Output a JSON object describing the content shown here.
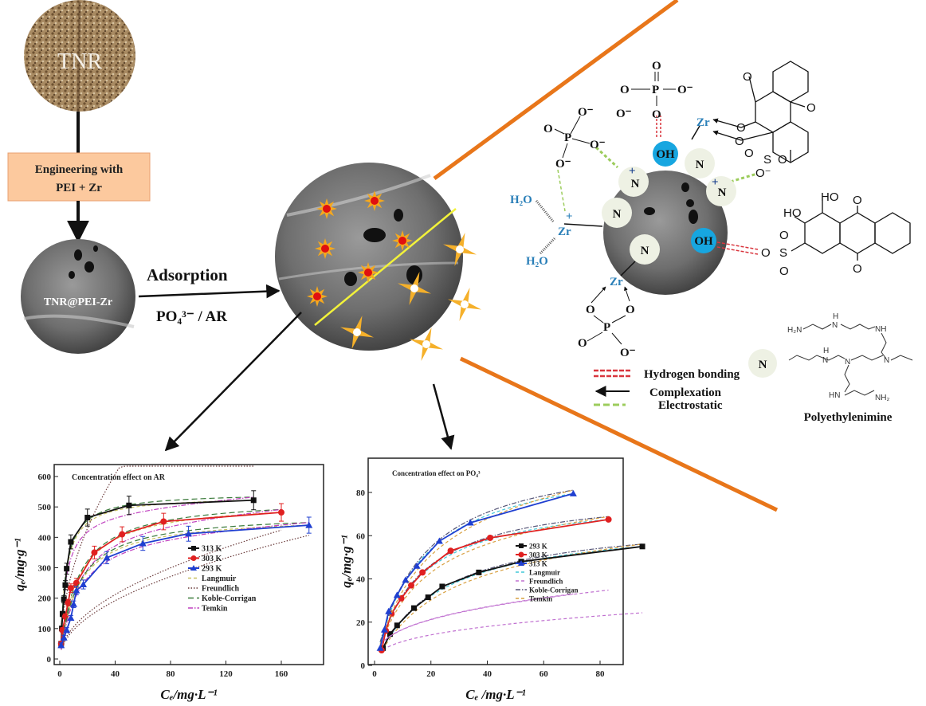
{
  "flow": {
    "raw_label": "TNR",
    "step_box": "Engineering with PEI + Zr",
    "step_box_line1": "Engineering  with",
    "step_box_line2": "PEI + Zr",
    "modified_label": "TNR@PEI-Zr",
    "process_label": "Adsorption",
    "targets_label": "PO₄³⁻ / AR"
  },
  "colors": {
    "accent_orange": "#e8761a",
    "box_fill": "#fcc99e",
    "oh_blue": "#17a6e0",
    "n_circle": "#eef1e4",
    "hbond": "#d9363e",
    "electrostatic": "#9ccc5c",
    "zr_blue": "#2a7fb8"
  },
  "mechanism": {
    "oh": "OH",
    "n": "N",
    "n_plus": "+",
    "zr": "Zr",
    "zr_plus": "+",
    "h2o": "H₂O",
    "o": "O",
    "o_minus": "O⁻",
    "p": "P",
    "s": "S",
    "ho": "HO",
    "legend": {
      "hbond": "Hydrogen  bonding",
      "complexation": "Complexation",
      "electrostatic": "Electrostatic"
    },
    "pei": {
      "name": "Polyethylenimine",
      "h2n": "H₂N",
      "nh": "NH",
      "h": "H",
      "n": "N",
      "hn": "HN",
      "nh2": "NH₂"
    }
  },
  "chart_data": [
    {
      "type": "scatter",
      "title": "Concentration effect on AR",
      "xlabel": "Cₑ/mg·L⁻¹",
      "ylabel": "qₑ/mg·g⁻¹",
      "xlim": [
        -5,
        185
      ],
      "ylim": [
        0,
        640
      ],
      "xticks": [
        0,
        40,
        80,
        120,
        160
      ],
      "yticks": [
        0,
        100,
        200,
        300,
        400,
        500,
        600
      ],
      "grid": false,
      "legend_placement": "center-right",
      "error_bars": true,
      "series": [
        {
          "name": "313 K",
          "color": "#111111",
          "marker": "square",
          "x": [
            1,
            1.5,
            2,
            3,
            4,
            5,
            8,
            20,
            50,
            140
          ],
          "y": [
            50,
            100,
            148,
            196,
            243,
            297,
            385,
            465,
            505,
            522
          ]
        },
        {
          "name": "303 K",
          "color": "#e02020",
          "marker": "circle",
          "x": [
            1,
            2,
            4,
            6,
            8,
            12,
            25,
            45,
            75,
            160
          ],
          "y": [
            50,
            95,
            140,
            185,
            233,
            250,
            350,
            410,
            452,
            482
          ]
        },
        {
          "name": "293 K",
          "color": "#1f3fd0",
          "marker": "triangle",
          "x": [
            1,
            3,
            5,
            8,
            10,
            12,
            17,
            34,
            60,
            93,
            180
          ],
          "y": [
            45,
            70,
            95,
            135,
            180,
            225,
            245,
            333,
            380,
            412,
            440
          ]
        }
      ],
      "models": [
        {
          "name": "Langmuir",
          "color": "#c8c060",
          "dash": "dash"
        },
        {
          "name": "Freundlich",
          "color": "#6a3a3a",
          "dash": "dot"
        },
        {
          "name": "Koble-Corrigan",
          "color": "#3a7a3a",
          "dash": "longdash"
        },
        {
          "name": "Temkin",
          "color": "#c040c0",
          "dash": "dashdot"
        }
      ]
    },
    {
      "type": "scatter",
      "title": "Concentration effect on PO₄³",
      "xlabel": "Cₑ /mg·L⁻¹",
      "ylabel": "qₑ/mg·g⁻¹",
      "xlim": [
        -1,
        97
      ],
      "ylim": [
        0,
        95
      ],
      "xticks": [
        0,
        20,
        40,
        60,
        80
      ],
      "yticks": [
        0,
        20,
        40,
        60,
        80
      ],
      "grid": false,
      "legend_placement": "center-right",
      "series": [
        {
          "name": "293 K",
          "color": "#111111",
          "marker": "square",
          "x": [
            3,
            5.5,
            8,
            14,
            19,
            24,
            37,
            52,
            95
          ],
          "y": [
            8,
            14.5,
            18.5,
            26.5,
            31.5,
            36.5,
            43,
            48,
            55
          ]
        },
        {
          "name": "303 K",
          "color": "#e02020",
          "marker": "circle",
          "x": [
            2.5,
            4,
            6,
            9.5,
            13,
            17,
            27,
            41,
            83
          ],
          "y": [
            7,
            16,
            24,
            31,
            37,
            43,
            53,
            59,
            67.5
          ]
        },
        {
          "name": "313 K",
          "color": "#1f3fd0",
          "marker": "triangle",
          "x": [
            2,
            3.5,
            5,
            8,
            11,
            15,
            23,
            34,
            70.5
          ],
          "y": [
            8,
            16.5,
            25,
            32.5,
            39.5,
            46,
            57.5,
            66,
            79.5
          ]
        }
      ],
      "models": [
        {
          "name": "Langmuir",
          "color": "#40c8d8",
          "dash": "dash"
        },
        {
          "name": "Freundlich",
          "color": "#c070d0",
          "dash": "dash"
        },
        {
          "name": "Koble-Corrigan",
          "color": "#555577",
          "dash": "dashdot"
        },
        {
          "name": "Temkin",
          "color": "#d8a040",
          "dash": "dash"
        }
      ]
    }
  ]
}
